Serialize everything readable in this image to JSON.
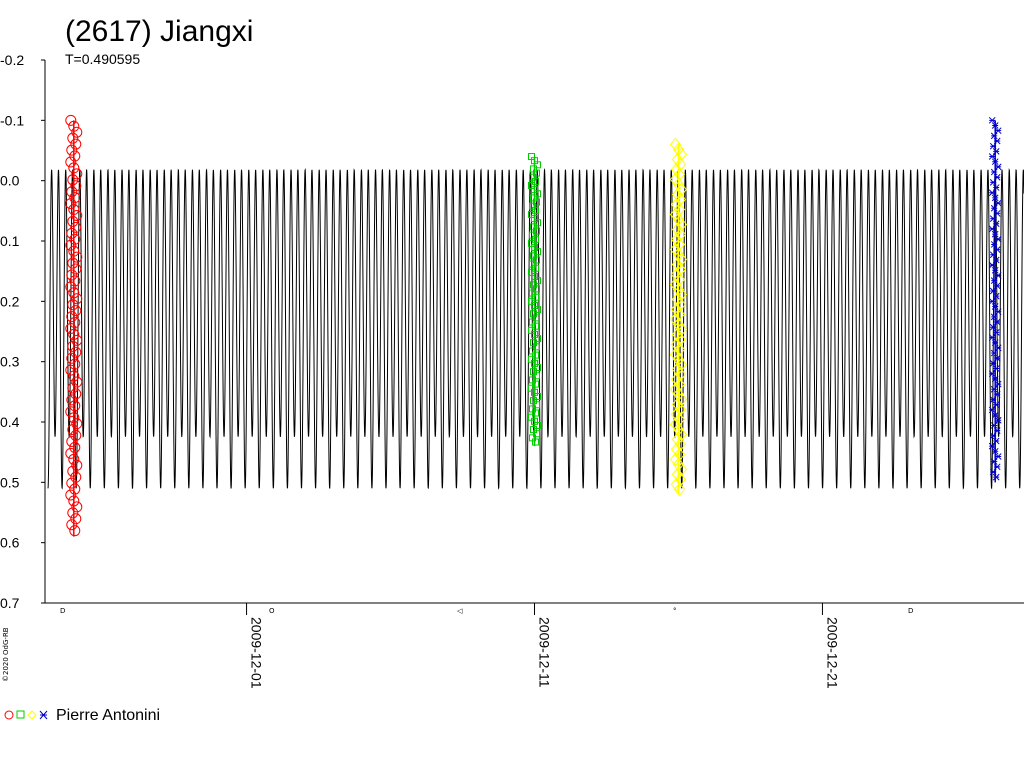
{
  "title": "(2617) Jiangxi",
  "period_label": "T=0.490595",
  "credit": "©2020 OdG-RB",
  "legend_label": "Pierre Antonini",
  "chart_data": {
    "type": "scatter",
    "title": "(2617) Jiangxi",
    "subtitle": "T=0.490595",
    "xlabel": "",
    "ylabel": "",
    "y_inverted": true,
    "ylim": [
      -0.2,
      0.7
    ],
    "y_ticks": [
      "-0.2",
      "-0.1",
      "0.0",
      "0.1",
      "0.2",
      "0.3",
      "0.4",
      "0.5",
      "0.6",
      "0.7"
    ],
    "y_tick_values": [
      -0.2,
      -0.1,
      0.0,
      0.1,
      0.2,
      0.3,
      0.4,
      0.5,
      0.6,
      0.7
    ],
    "xlim": [
      "2009-11-24",
      "2009-12-28"
    ],
    "x_ticks": [
      "2009-12-01",
      "2009-12-11",
      "2009-12-21"
    ],
    "model_curve": {
      "period_days": 0.490595,
      "max_magnitude": 0.51,
      "min_magnitude": -0.06,
      "secondary_max": 0.43,
      "secondary_min": -0.05
    },
    "series": [
      {
        "name": "Pierre Antonini",
        "marker": "circle",
        "color": "#ff0000",
        "date": "2009-11-25",
        "mag_range": [
          -0.1,
          0.59
        ]
      },
      {
        "name": "Pierre Antonini",
        "marker": "square",
        "color": "#00cc00",
        "date": "2009-12-11",
        "mag_range": [
          -0.04,
          0.44
        ]
      },
      {
        "name": "Pierre Antonini",
        "marker": "diamond",
        "color": "#ffff00",
        "date": "2009-12-16",
        "mag_range": [
          -0.06,
          0.52
        ]
      },
      {
        "name": "Pierre Antonini",
        "marker": "star",
        "color": "#0000cc",
        "date": "2009-12-27",
        "mag_range": [
          -0.1,
          0.5
        ]
      }
    ],
    "legend_position": "bottom-left"
  }
}
